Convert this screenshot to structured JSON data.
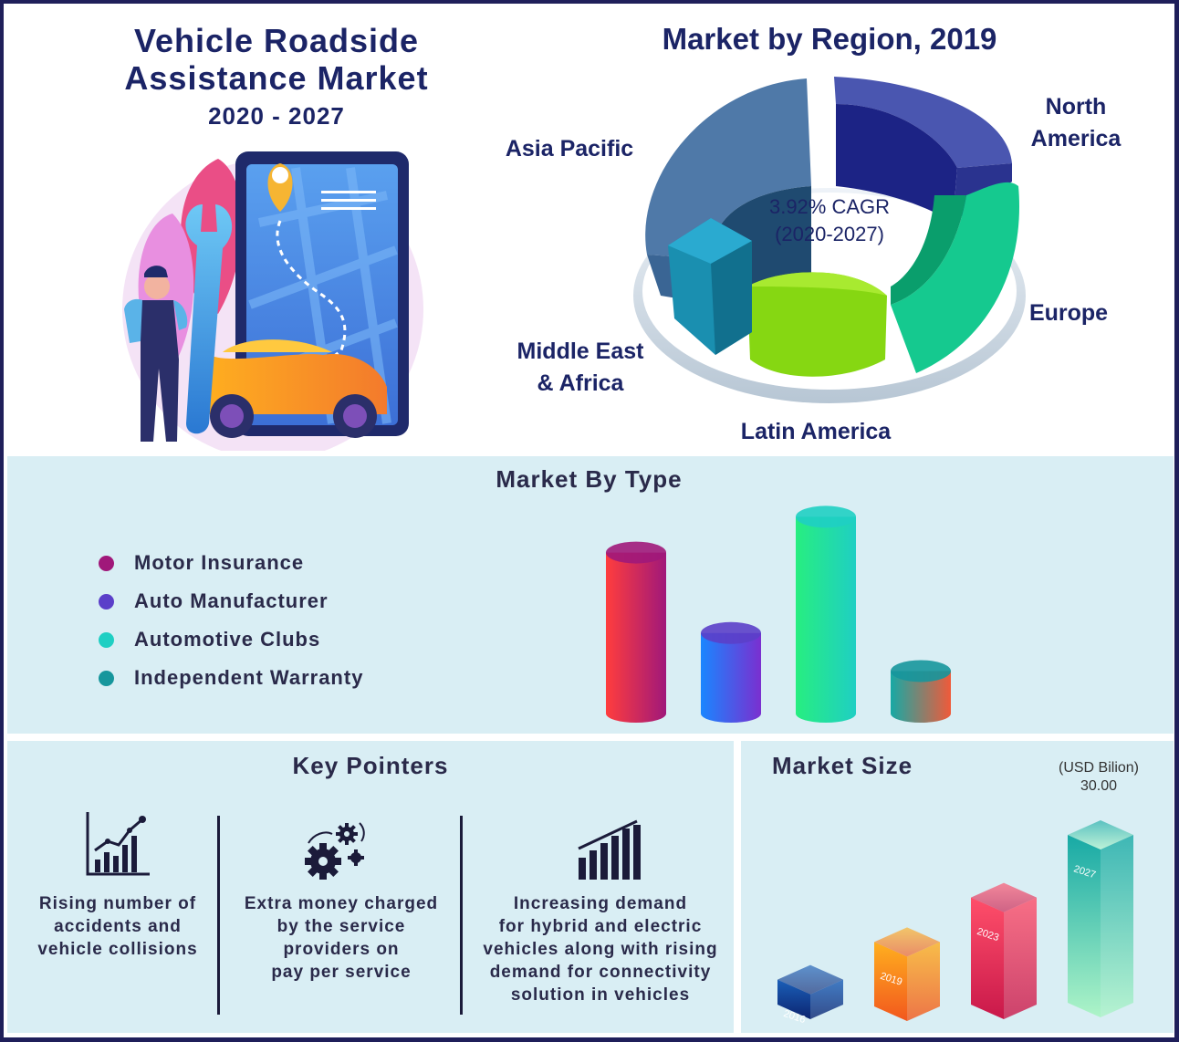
{
  "header": {
    "title_line1": "Vehicle Roadside",
    "title_line2": "Assistance Market",
    "years": "2020 - 2027"
  },
  "region": {
    "title": "Market by Region, 2019",
    "cagr_line1": "3.92% CAGR",
    "cagr_line2": "(2020-2027)",
    "labels": {
      "north_america_1": "North",
      "north_america_2": "America",
      "asia_pacific": "Asia Pacific",
      "europe": "Europe",
      "mea_1": "Middle East",
      "mea_2": "& Africa",
      "latin_america": "Latin America"
    }
  },
  "type_section": {
    "title": "Market By Type",
    "legend": [
      {
        "label": "Motor Insurance",
        "color": "#a0187a"
      },
      {
        "label": "Auto Manufacturer",
        "color": "#5b3fc9"
      },
      {
        "label": "Automotive Clubs",
        "color": "#1fcfc3"
      },
      {
        "label": "Independent Warranty",
        "color": "#16969c"
      }
    ]
  },
  "pointers": {
    "title": "Key Pointers",
    "items": [
      {
        "icon": "growth-chart-icon",
        "line1": "Rising number of",
        "line2": "accidents and",
        "line3": "vehicle collisions"
      },
      {
        "icon": "gears-icon",
        "line1": "Extra money charged",
        "line2": "by the service",
        "line3": "providers on",
        "line4": "pay per service"
      },
      {
        "icon": "bar-chart-icon",
        "line1": "Increasing demand",
        "line2": "for hybrid and electric",
        "line3": "vehicles along with rising",
        "line4": "demand for connectivity",
        "line5": "solution in vehicles"
      }
    ]
  },
  "size_section": {
    "title": "Market Size",
    "unit": "(USD Bilion)",
    "top_value": "30.00"
  },
  "chart_data": [
    {
      "type": "pie",
      "title": "Market by Region, 2019",
      "categories": [
        "North America",
        "Europe",
        "Latin America",
        "Middle East & Africa",
        "Asia Pacific"
      ],
      "colors": [
        "#23289a",
        "#0fbf8a",
        "#7fd10f",
        "#1a8fb0",
        "#3a6594"
      ]
    },
    {
      "type": "bar",
      "title": "Market By Type",
      "categories": [
        "Motor Insurance",
        "Auto Manufacturer",
        "Automotive Clubs",
        "Independent Warranty"
      ],
      "values": [
        0.72,
        0.36,
        0.88,
        0.19
      ]
    },
    {
      "type": "bar",
      "title": "Market Size",
      "ylabel": "(USD Bilion)",
      "categories": [
        "2016",
        "2019",
        "2023",
        "2027"
      ],
      "values": [
        6.5,
        13.0,
        20.0,
        30.0
      ],
      "data_labels": [
        "",
        "",
        "",
        "30.00"
      ]
    }
  ]
}
